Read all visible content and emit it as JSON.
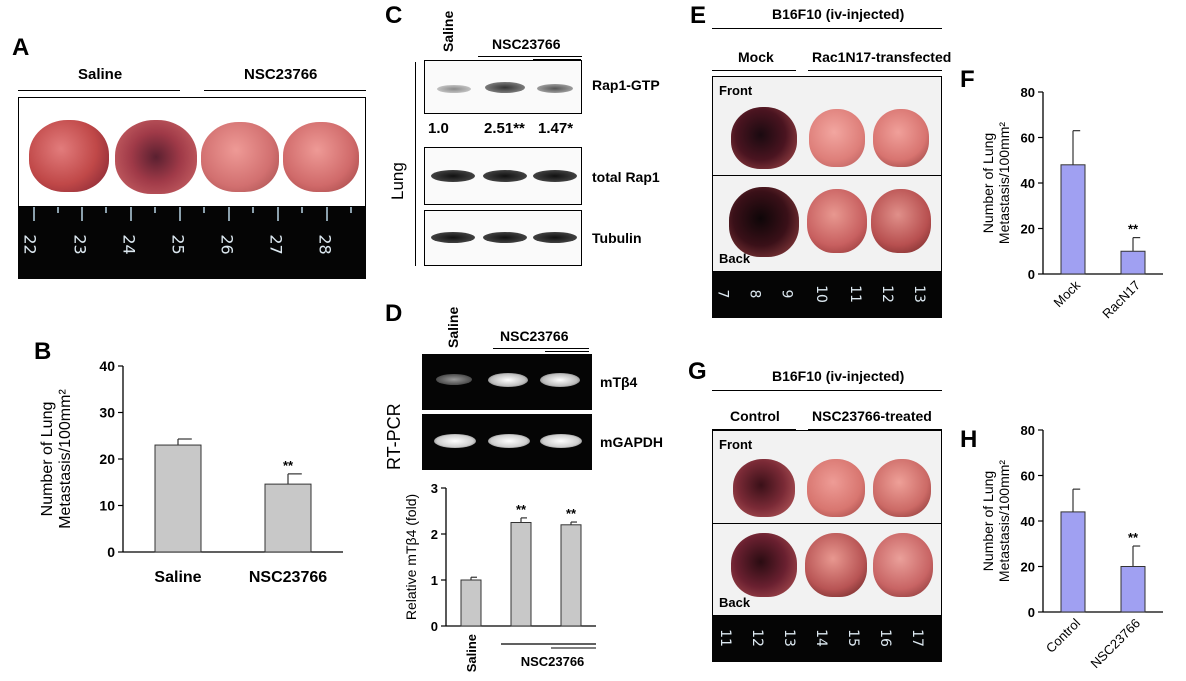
{
  "panels": {
    "A": {
      "label": "A",
      "groups": [
        "Saline",
        "NSC23766"
      ],
      "ruler_ticks": [
        "22",
        "23",
        "24",
        "25",
        "26",
        "27",
        "28"
      ]
    },
    "B": {
      "label": "B"
    },
    "C": {
      "label": "C",
      "lanes": [
        "Saline",
        "NSC23766"
      ],
      "tissue": "Lung",
      "blots": [
        "Rap1-GTP",
        "total Rap1",
        "Tubulin"
      ],
      "quant": [
        "1.0",
        "2.51**",
        "1.47*"
      ]
    },
    "D": {
      "label": "D",
      "lanes": [
        "Saline",
        "NSC23766"
      ],
      "method": "RT-PCR",
      "genes": [
        "mTβ4",
        "mGAPDH"
      ]
    },
    "E": {
      "label": "E",
      "title": "B16F10 (iv-injected)",
      "groups": [
        "Mock",
        "Rac1N17-transfected"
      ],
      "views": [
        "Front",
        "Back"
      ],
      "ruler_ticks": [
        "7",
        "8",
        "9",
        "10",
        "11",
        "12",
        "13"
      ]
    },
    "F": {
      "label": "F"
    },
    "G": {
      "label": "G",
      "title": "B16F10 (iv-injected)",
      "groups": [
        "Control",
        "NSC23766-treated"
      ],
      "views": [
        "Front",
        "Back"
      ],
      "ruler_ticks": [
        "11",
        "12",
        "13",
        "14",
        "15",
        "16",
        "17"
      ]
    },
    "H": {
      "label": "H"
    }
  },
  "chart_data": [
    {
      "id": "B",
      "type": "bar",
      "ylabel": "Number of Lung Metastasis/100mm²",
      "categories": [
        "Saline",
        "NSC23766"
      ],
      "values": [
        23,
        14.6
      ],
      "errors": [
        1.3,
        2.2
      ],
      "significance": [
        "",
        "**"
      ],
      "ylim": [
        0,
        40
      ],
      "yticks": [
        "0",
        "10",
        "20",
        "30",
        "40"
      ],
      "bar_color": "#c8c8c8"
    },
    {
      "id": "D",
      "type": "bar",
      "ylabel": "Relative mTβ4 (fold)",
      "categories": [
        "Saline",
        "NSC23766",
        "NSC23766"
      ],
      "category_labels": [
        "Saline",
        "NSC23766"
      ],
      "values": [
        1.0,
        2.25,
        2.2
      ],
      "errors": [
        0.06,
        0.1,
        0.06
      ],
      "significance": [
        "",
        "**",
        "**"
      ],
      "ylim": [
        0,
        3
      ],
      "yticks": [
        "0",
        "1",
        "2",
        "3"
      ],
      "bar_color": "#c8c8c8"
    },
    {
      "id": "F",
      "type": "bar",
      "ylabel": "Number of Lung Metastasis/100mm²",
      "categories": [
        "Mock",
        "RacN17"
      ],
      "values": [
        48,
        10
      ],
      "errors": [
        15,
        6
      ],
      "significance": [
        "",
        "**"
      ],
      "ylim": [
        0,
        80
      ],
      "yticks": [
        "0",
        "20",
        "40",
        "60",
        "80"
      ],
      "bar_color": "#a0a0f2"
    },
    {
      "id": "H",
      "type": "bar",
      "ylabel": "Number of Lung Metastasis/100mm²",
      "categories": [
        "Control",
        "NSC23766"
      ],
      "values": [
        44,
        20
      ],
      "errors": [
        10,
        9
      ],
      "significance": [
        "",
        "**"
      ],
      "ylim": [
        0,
        80
      ],
      "yticks": [
        "0",
        "20",
        "40",
        "60",
        "80"
      ],
      "bar_color": "#a0a0f2"
    }
  ]
}
